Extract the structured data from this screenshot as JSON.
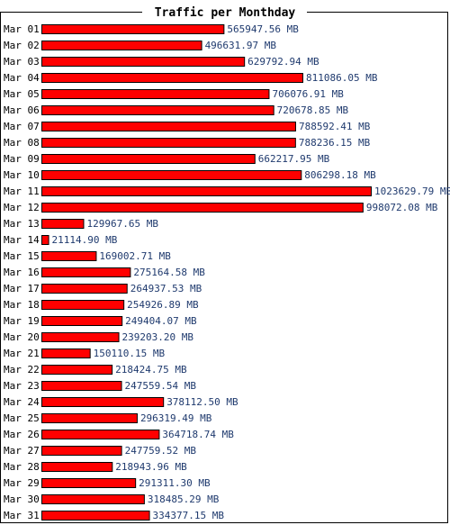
{
  "chart_data": {
    "type": "bar",
    "orientation": "horizontal",
    "title": "Traffic per Monthday",
    "unit": "MB",
    "categories": [
      "Mar 01",
      "Mar 02",
      "Mar 03",
      "Mar 04",
      "Mar 05",
      "Mar 06",
      "Mar 07",
      "Mar 08",
      "Mar 09",
      "Mar 10",
      "Mar 11",
      "Mar 12",
      "Mar 13",
      "Mar 14",
      "Mar 15",
      "Mar 16",
      "Mar 17",
      "Mar 18",
      "Mar 19",
      "Mar 20",
      "Mar 21",
      "Mar 22",
      "Mar 23",
      "Mar 24",
      "Mar 25",
      "Mar 26",
      "Mar 27",
      "Mar 28",
      "Mar 29",
      "Mar 30",
      "Mar 31"
    ],
    "values": [
      565947.56,
      496631.97,
      629792.94,
      811086.05,
      706076.91,
      720678.85,
      788592.41,
      788236.15,
      662217.95,
      806298.18,
      1023629.79,
      998072.08,
      129967.65,
      21114.9,
      169002.71,
      275164.58,
      264937.53,
      254926.89,
      249404.07,
      239203.2,
      150110.15,
      218424.75,
      247559.54,
      378112.5,
      296319.49,
      364718.74,
      247759.52,
      218943.96,
      291311.3,
      318485.29,
      334377.15
    ],
    "value_labels": [
      "565947.56 MB",
      "496631.97 MB",
      "629792.94 MB",
      "811086.05 MB",
      "706076.91 MB",
      "720678.85 MB",
      "788592.41 MB",
      "788236.15 MB",
      "662217.95 MB",
      "806298.18 MB",
      "1023629.79 MB",
      "998072.08 MB",
      "129967.65 MB",
      "21114.90 MB",
      "169002.71 MB",
      "275164.58 MB",
      "264937.53 MB",
      "254926.89 MB",
      "249404.07 MB",
      "239203.20 MB",
      "150110.15 MB",
      "218424.75 MB",
      "247559.54 MB",
      "378112.50 MB",
      "296319.49 MB",
      "364718.74 MB",
      "247759.52 MB",
      "218943.96 MB",
      "291311.30 MB",
      "318485.29 MB",
      "334377.15 MB"
    ],
    "grid": false,
    "legend": false
  },
  "colors": {
    "bar_fill": "#ff0000",
    "bar_stroke": "#000000",
    "value_label": "#1f3a6e",
    "category_label": "#000000",
    "frame": "#000000",
    "background": "#ffffff"
  }
}
